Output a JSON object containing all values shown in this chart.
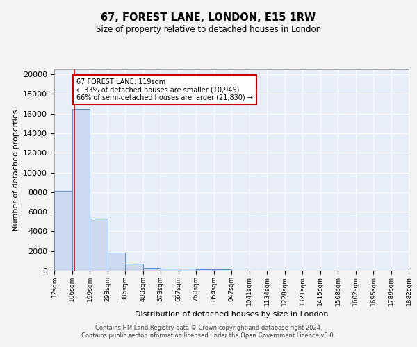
{
  "title_line1": "67, FOREST LANE, LONDON, E15 1RW",
  "title_line2": "Size of property relative to detached houses in London",
  "xlabel": "Distribution of detached houses by size in London",
  "ylabel": "Number of detached properties",
  "bin_edges": [
    12,
    106,
    199,
    293,
    386,
    480,
    573,
    667,
    760,
    854,
    947,
    1041,
    1134,
    1228,
    1321,
    1415,
    1508,
    1602,
    1695,
    1789,
    1882
  ],
  "bin_heights": [
    8100,
    16500,
    5300,
    1850,
    700,
    300,
    230,
    200,
    170,
    130,
    0,
    0,
    0,
    0,
    0,
    0,
    0,
    0,
    0,
    0
  ],
  "bar_color": "#ccd9ee",
  "bar_edge_color": "#5b8fd4",
  "property_line_x": 119,
  "property_line_color": "#cc0000",
  "annotation_text": "67 FOREST LANE: 119sqm\n← 33% of detached houses are smaller (10,945)\n66% of semi-detached houses are larger (21,830) →",
  "annotation_box_color": "#ffffff",
  "annotation_box_edge": "#cc0000",
  "ylim": [
    0,
    20500
  ],
  "yticks": [
    0,
    2000,
    4000,
    6000,
    8000,
    10000,
    12000,
    14000,
    16000,
    18000,
    20000
  ],
  "background_color": "#e8eef8",
  "grid_color": "#ffffff",
  "footer_line1": "Contains HM Land Registry data © Crown copyright and database right 2024.",
  "footer_line2": "Contains public sector information licensed under the Open Government Licence v3.0."
}
